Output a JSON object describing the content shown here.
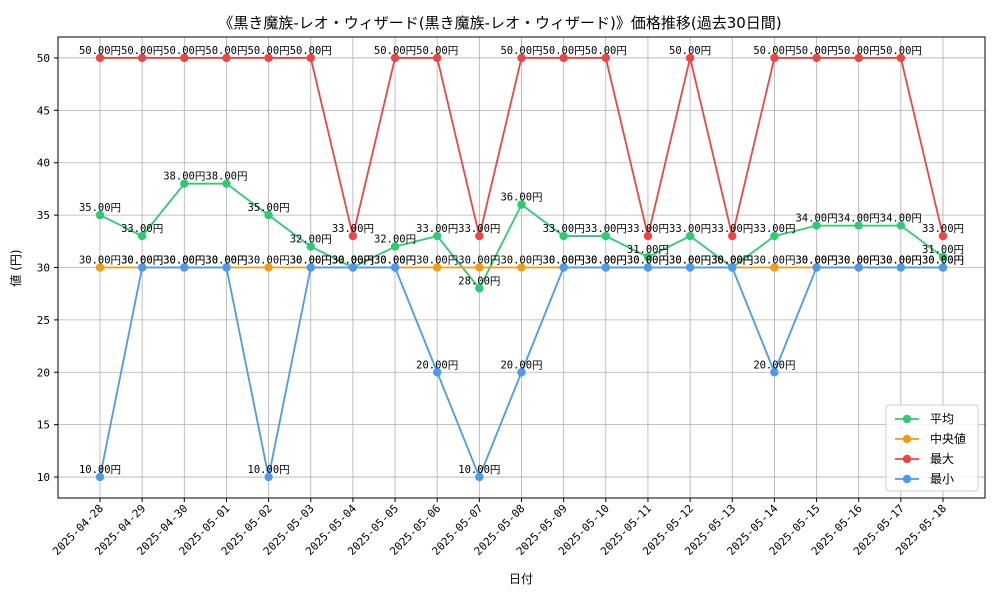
{
  "chart_data": {
    "type": "line",
    "title": "《黒き魔族-レオ・ウィザード(黒き魔族-レオ・ウィザード)》価格推移(過去30日間)",
    "xlabel": "日付",
    "ylabel": "値 (円)",
    "ylim": [
      8,
      52
    ],
    "yticks": [
      10,
      15,
      20,
      25,
      30,
      35,
      40,
      45,
      50
    ],
    "grid": true,
    "legend_position": "bottom-right",
    "label_suffix": "円",
    "categories": [
      "2025-04-28",
      "2025-04-29",
      "2025-04-30",
      "2025-05-01",
      "2025-05-02",
      "2025-05-03",
      "2025-05-04",
      "2025-05-05",
      "2025-05-06",
      "2025-05-07",
      "2025-05-08",
      "2025-05-09",
      "2025-05-10",
      "2025-05-11",
      "2025-05-12",
      "2025-05-13",
      "2025-05-14",
      "2025-05-15",
      "2025-05-16",
      "2025-05-17",
      "2025-05-18"
    ],
    "series": [
      {
        "name": "平均",
        "color": "#2ecc71",
        "values": [
          35,
          33,
          38,
          38,
          35,
          32,
          30,
          32,
          33,
          28,
          36,
          33,
          33,
          31,
          33,
          30,
          33,
          34,
          34,
          34,
          31
        ]
      },
      {
        "name": "中央値",
        "color": "#f39c12",
        "values": [
          30,
          30,
          30,
          30,
          30,
          30,
          30,
          30,
          30,
          30,
          30,
          30,
          30,
          30,
          30,
          30,
          30,
          30,
          30,
          30,
          30
        ]
      },
      {
        "name": "最大",
        "color": "#ef4444",
        "values": [
          50,
          50,
          50,
          50,
          50,
          50,
          33,
          50,
          50,
          33,
          50,
          50,
          50,
          33,
          50,
          33,
          50,
          50,
          50,
          50,
          33
        ]
      },
      {
        "name": "最小",
        "color": "#4a9af0",
        "values": [
          10,
          30,
          30,
          30,
          10,
          30,
          30,
          30,
          20,
          10,
          20,
          30,
          30,
          30,
          30,
          30,
          20,
          30,
          30,
          30,
          30
        ]
      }
    ]
  }
}
